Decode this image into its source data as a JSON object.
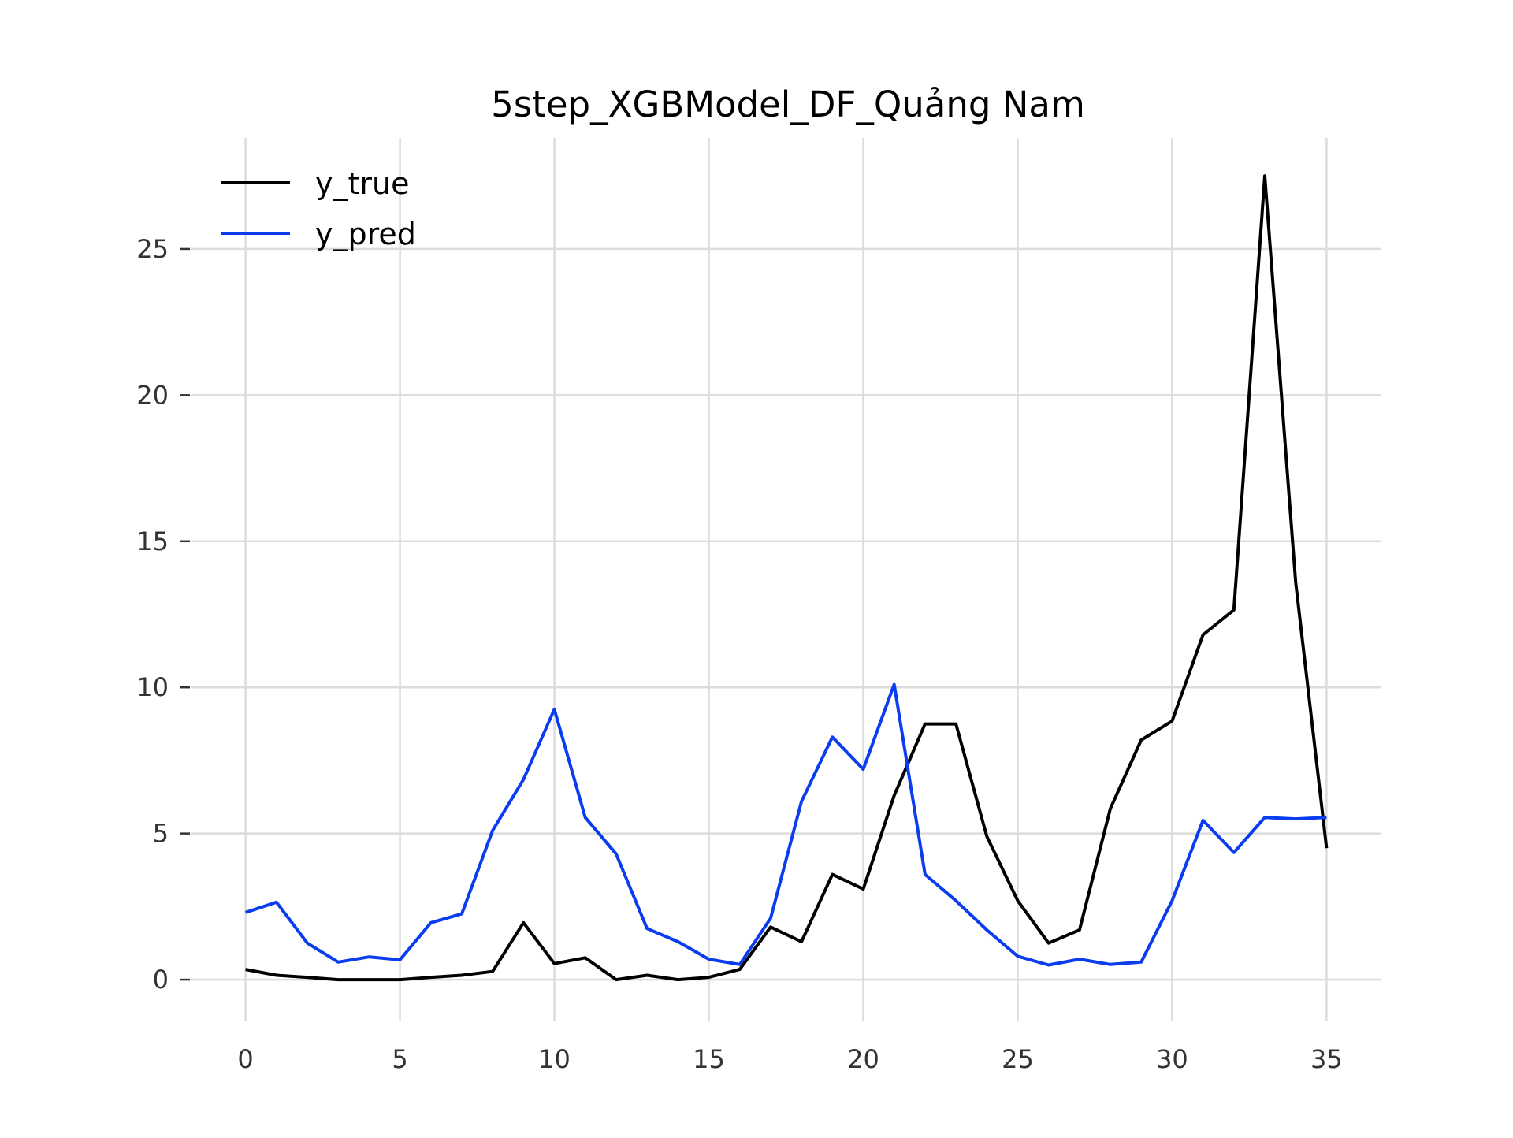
{
  "chart_data": {
    "type": "line",
    "title": "5step_XGBModel_DF_Quảng Nam",
    "xlabel": "",
    "ylabel": "",
    "xlim": [
      -1.75,
      36.75
    ],
    "ylim": [
      -1.4,
      28.8
    ],
    "xticks": [
      0,
      5,
      10,
      15,
      20,
      25,
      30,
      35
    ],
    "yticks": [
      0,
      5,
      10,
      15,
      20,
      25
    ],
    "grid": true,
    "legend_position": "top-left",
    "x": [
      0,
      1,
      2,
      3,
      4,
      5,
      6,
      7,
      8,
      9,
      10,
      11,
      12,
      13,
      14,
      15,
      16,
      17,
      18,
      19,
      20,
      21,
      22,
      23,
      24,
      25,
      26,
      27,
      28,
      29,
      30,
      31,
      32,
      33,
      34,
      35
    ],
    "series": [
      {
        "name": "y_true",
        "color": "#000000",
        "values": [
          0.35,
          0.15,
          0.08,
          0.0,
          0.0,
          0.0,
          0.08,
          0.15,
          0.28,
          1.95,
          0.55,
          0.75,
          0.0,
          0.15,
          0.0,
          0.08,
          0.35,
          1.8,
          1.3,
          3.6,
          3.1,
          6.3,
          8.75,
          8.75,
          4.9,
          2.7,
          1.25,
          1.7,
          5.85,
          8.2,
          8.85,
          11.8,
          12.65,
          27.5,
          13.6,
          4.5
        ]
      },
      {
        "name": "y_pred",
        "color": "#0a3cf0",
        "values": [
          2.3,
          2.65,
          1.25,
          0.6,
          0.78,
          0.68,
          1.95,
          2.25,
          5.1,
          6.85,
          9.25,
          5.55,
          4.3,
          1.75,
          1.3,
          0.7,
          0.52,
          2.1,
          6.1,
          8.3,
          7.2,
          10.1,
          3.6,
          2.7,
          1.7,
          0.8,
          0.5,
          0.7,
          0.52,
          0.6,
          2.7,
          5.45,
          4.35,
          5.55,
          5.5,
          5.55
        ]
      }
    ]
  }
}
